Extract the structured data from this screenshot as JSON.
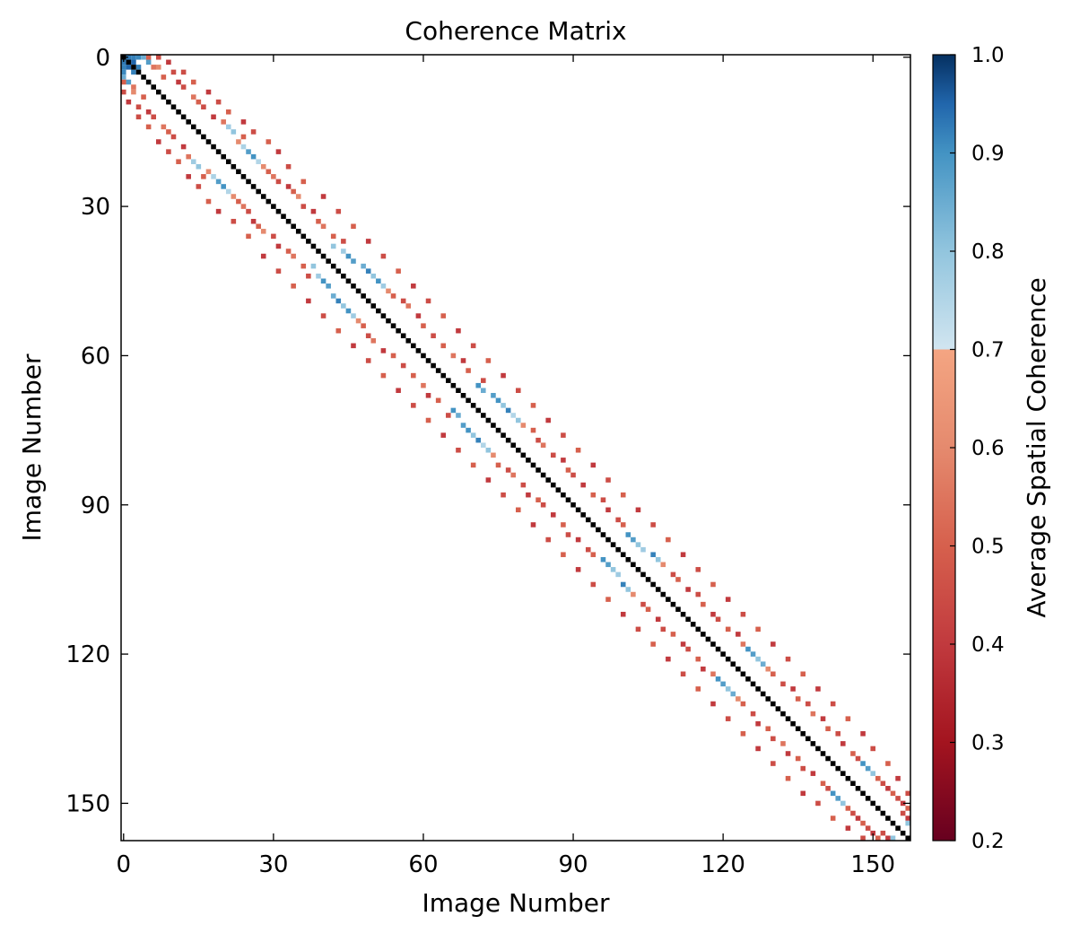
{
  "chart_data": {
    "type": "heatmap",
    "title": "Coherence Matrix",
    "xlabel": "Image Number",
    "ylabel": "Image Number",
    "colorbar_label": "Average Spatial Coherence",
    "n_images": 158,
    "xlim": [
      0,
      157
    ],
    "ylim": [
      157,
      0
    ],
    "x_ticks": [
      0,
      30,
      60,
      90,
      120,
      150
    ],
    "y_ticks": [
      0,
      30,
      60,
      90,
      120,
      150
    ],
    "colorbar_range": [
      0.2,
      1.0
    ],
    "colorbar_ticks": [
      "0.2",
      "0.3",
      "0.4",
      "0.5",
      "0.6",
      "0.7",
      "0.8",
      "0.9",
      "1.0"
    ],
    "colorbar_ticks_values": [
      0.2,
      0.3,
      0.4,
      0.5,
      0.6,
      0.7,
      0.8,
      0.9,
      1.0
    ],
    "colormap": "RdBu (diverging, red-to-blue)",
    "colormap_stops": [
      {
        "value": 0.2,
        "color": "#67001f"
      },
      {
        "value": 0.3,
        "color": "#a3141f"
      },
      {
        "value": 0.4,
        "color": "#c13a3e"
      },
      {
        "value": 0.5,
        "color": "#d6604d"
      },
      {
        "value": 0.6,
        "color": "#e58a6e"
      },
      {
        "value": 0.7,
        "color": "#f4a582"
      },
      {
        "value": 0.7,
        "color": "#d1e5f0"
      },
      {
        "value": 0.8,
        "color": "#92c5de"
      },
      {
        "value": 0.9,
        "color": "#4393c3"
      },
      {
        "value": 0.95,
        "color": "#2166ac"
      },
      {
        "value": 1.0,
        "color": "#053061"
      }
    ],
    "diagonal_value": 1.0,
    "diagonal_color": "#000000",
    "cells": [
      [
        0,
        1,
        0.93
      ],
      [
        0,
        2,
        0.92
      ],
      [
        0,
        3,
        0.91
      ],
      [
        1,
        2,
        0.95
      ],
      [
        2,
        3,
        0.92
      ],
      [
        0,
        4,
        0.85
      ],
      [
        1,
        5,
        0.88
      ],
      [
        0,
        5,
        0.5
      ],
      [
        2,
        7,
        0.6
      ],
      [
        3,
        10,
        0.45
      ],
      [
        2,
        6,
        0.55
      ],
      [
        4,
        8,
        0.5
      ],
      [
        5,
        11,
        0.4
      ],
      [
        6,
        12,
        0.45
      ],
      [
        8,
        14,
        0.55
      ],
      [
        9,
        15,
        0.5
      ],
      [
        10,
        16,
        0.45
      ],
      [
        12,
        18,
        0.4
      ],
      [
        13,
        20,
        0.55
      ],
      [
        14,
        21,
        0.78
      ],
      [
        15,
        22,
        0.8
      ],
      [
        16,
        24,
        0.5
      ],
      [
        17,
        23,
        0.6
      ],
      [
        18,
        24,
        0.76
      ],
      [
        19,
        25,
        0.88
      ],
      [
        20,
        26,
        0.9
      ],
      [
        21,
        27,
        0.75
      ],
      [
        22,
        28,
        0.6
      ],
      [
        23,
        29,
        0.5
      ],
      [
        24,
        30,
        0.55
      ],
      [
        25,
        31,
        0.45
      ],
      [
        26,
        33,
        0.4
      ],
      [
        27,
        34,
        0.5
      ],
      [
        28,
        35,
        0.6
      ],
      [
        30,
        36,
        0.45
      ],
      [
        31,
        38,
        0.4
      ],
      [
        33,
        39,
        0.5
      ],
      [
        34,
        40,
        0.55
      ],
      [
        36,
        42,
        0.5
      ],
      [
        37,
        44,
        0.45
      ],
      [
        38,
        42,
        0.8
      ],
      [
        39,
        44,
        0.78
      ],
      [
        40,
        45,
        0.9
      ],
      [
        41,
        46,
        0.88
      ],
      [
        42,
        48,
        0.85
      ],
      [
        43,
        49,
        0.92
      ],
      [
        44,
        50,
        0.8
      ],
      [
        45,
        51,
        0.9
      ],
      [
        46,
        52,
        0.78
      ],
      [
        47,
        53,
        0.6
      ],
      [
        48,
        54,
        0.5
      ],
      [
        49,
        56,
        0.45
      ],
      [
        50,
        57,
        0.55
      ],
      [
        52,
        59,
        0.4
      ],
      [
        54,
        60,
        0.5
      ],
      [
        56,
        62,
        0.45
      ],
      [
        58,
        64,
        0.5
      ],
      [
        60,
        66,
        0.55
      ],
      [
        61,
        68,
        0.4
      ],
      [
        63,
        69,
        0.5
      ],
      [
        65,
        72,
        0.45
      ],
      [
        66,
        71,
        0.9
      ],
      [
        67,
        72,
        0.85
      ],
      [
        68,
        74,
        0.88
      ],
      [
        69,
        75,
        0.9
      ],
      [
        70,
        76,
        0.8
      ],
      [
        71,
        77,
        0.92
      ],
      [
        72,
        78,
        0.75
      ],
      [
        73,
        79,
        0.8
      ],
      [
        74,
        80,
        0.6
      ],
      [
        75,
        82,
        0.5
      ],
      [
        77,
        83,
        0.45
      ],
      [
        78,
        84,
        0.55
      ],
      [
        80,
        86,
        0.45
      ],
      [
        81,
        88,
        0.4
      ],
      [
        83,
        89,
        0.5
      ],
      [
        84,
        90,
        0.45
      ],
      [
        86,
        92,
        0.4
      ],
      [
        88,
        94,
        0.5
      ],
      [
        89,
        96,
        0.45
      ],
      [
        91,
        97,
        0.4
      ],
      [
        93,
        99,
        0.45
      ],
      [
        94,
        100,
        0.5
      ],
      [
        96,
        101,
        0.9
      ],
      [
        97,
        102,
        0.88
      ],
      [
        98,
        103,
        0.8
      ],
      [
        99,
        104,
        0.78
      ],
      [
        100,
        106,
        0.92
      ],
      [
        101,
        107,
        0.8
      ],
      [
        102,
        108,
        0.6
      ],
      [
        104,
        110,
        0.45
      ],
      [
        105,
        111,
        0.5
      ],
      [
        107,
        113,
        0.4
      ],
      [
        108,
        115,
        0.45
      ],
      [
        110,
        116,
        0.5
      ],
      [
        112,
        118,
        0.4
      ],
      [
        113,
        119,
        0.45
      ],
      [
        115,
        121,
        0.5
      ],
      [
        116,
        123,
        0.4
      ],
      [
        118,
        124,
        0.55
      ],
      [
        119,
        125,
        0.9
      ],
      [
        120,
        126,
        0.88
      ],
      [
        121,
        127,
        0.8
      ],
      [
        122,
        128,
        0.85
      ],
      [
        123,
        129,
        0.6
      ],
      [
        124,
        130,
        0.5
      ],
      [
        126,
        132,
        0.45
      ],
      [
        127,
        134,
        0.4
      ],
      [
        129,
        135,
        0.5
      ],
      [
        130,
        137,
        0.45
      ],
      [
        132,
        138,
        0.55
      ],
      [
        133,
        140,
        0.4
      ],
      [
        135,
        141,
        0.5
      ],
      [
        136,
        143,
        0.45
      ],
      [
        138,
        144,
        0.4
      ],
      [
        140,
        146,
        0.5
      ],
      [
        141,
        147,
        0.45
      ],
      [
        142,
        148,
        0.9
      ],
      [
        143,
        149,
        0.88
      ],
      [
        144,
        150,
        0.8
      ],
      [
        145,
        151,
        0.5
      ],
      [
        146,
        152,
        0.45
      ],
      [
        147,
        153,
        0.4
      ],
      [
        148,
        154,
        0.5
      ],
      [
        149,
        155,
        0.45
      ],
      [
        150,
        156,
        0.4
      ],
      [
        151,
        157,
        0.5
      ],
      [
        152,
        156,
        0.45
      ],
      [
        153,
        157,
        0.4
      ],
      [
        154,
        157,
        0.8
      ],
      [
        0,
        7,
        0.45
      ],
      [
        1,
        9,
        0.4
      ],
      [
        3,
        12,
        0.45
      ],
      [
        5,
        14,
        0.5
      ],
      [
        7,
        17,
        0.4
      ],
      [
        9,
        19,
        0.45
      ],
      [
        11,
        21,
        0.5
      ],
      [
        13,
        24,
        0.4
      ],
      [
        15,
        26,
        0.45
      ],
      [
        17,
        29,
        0.5
      ],
      [
        19,
        31,
        0.4
      ],
      [
        22,
        33,
        0.45
      ],
      [
        25,
        36,
        0.5
      ],
      [
        28,
        40,
        0.4
      ],
      [
        31,
        43,
        0.45
      ],
      [
        34,
        46,
        0.5
      ],
      [
        37,
        49,
        0.4
      ],
      [
        40,
        52,
        0.45
      ],
      [
        43,
        55,
        0.5
      ],
      [
        46,
        58,
        0.4
      ],
      [
        49,
        61,
        0.45
      ],
      [
        52,
        64,
        0.5
      ],
      [
        55,
        67,
        0.4
      ],
      [
        58,
        70,
        0.45
      ],
      [
        61,
        73,
        0.5
      ],
      [
        64,
        76,
        0.4
      ],
      [
        67,
        79,
        0.45
      ],
      [
        70,
        82,
        0.5
      ],
      [
        73,
        85,
        0.4
      ],
      [
        76,
        88,
        0.45
      ],
      [
        79,
        91,
        0.5
      ],
      [
        82,
        94,
        0.4
      ],
      [
        85,
        97,
        0.45
      ],
      [
        88,
        100,
        0.5
      ],
      [
        91,
        103,
        0.4
      ],
      [
        94,
        106,
        0.45
      ],
      [
        97,
        109,
        0.5
      ],
      [
        100,
        112,
        0.4
      ],
      [
        103,
        115,
        0.45
      ],
      [
        106,
        118,
        0.5
      ],
      [
        109,
        121,
        0.4
      ],
      [
        112,
        124,
        0.45
      ],
      [
        115,
        127,
        0.5
      ],
      [
        118,
        130,
        0.4
      ],
      [
        121,
        133,
        0.45
      ],
      [
        124,
        136,
        0.5
      ],
      [
        127,
        139,
        0.4
      ],
      [
        130,
        142,
        0.45
      ],
      [
        133,
        145,
        0.5
      ],
      [
        136,
        148,
        0.4
      ],
      [
        139,
        150,
        0.45
      ],
      [
        142,
        153,
        0.5
      ],
      [
        145,
        155,
        0.4
      ],
      [
        148,
        157,
        0.45
      ]
    ]
  }
}
